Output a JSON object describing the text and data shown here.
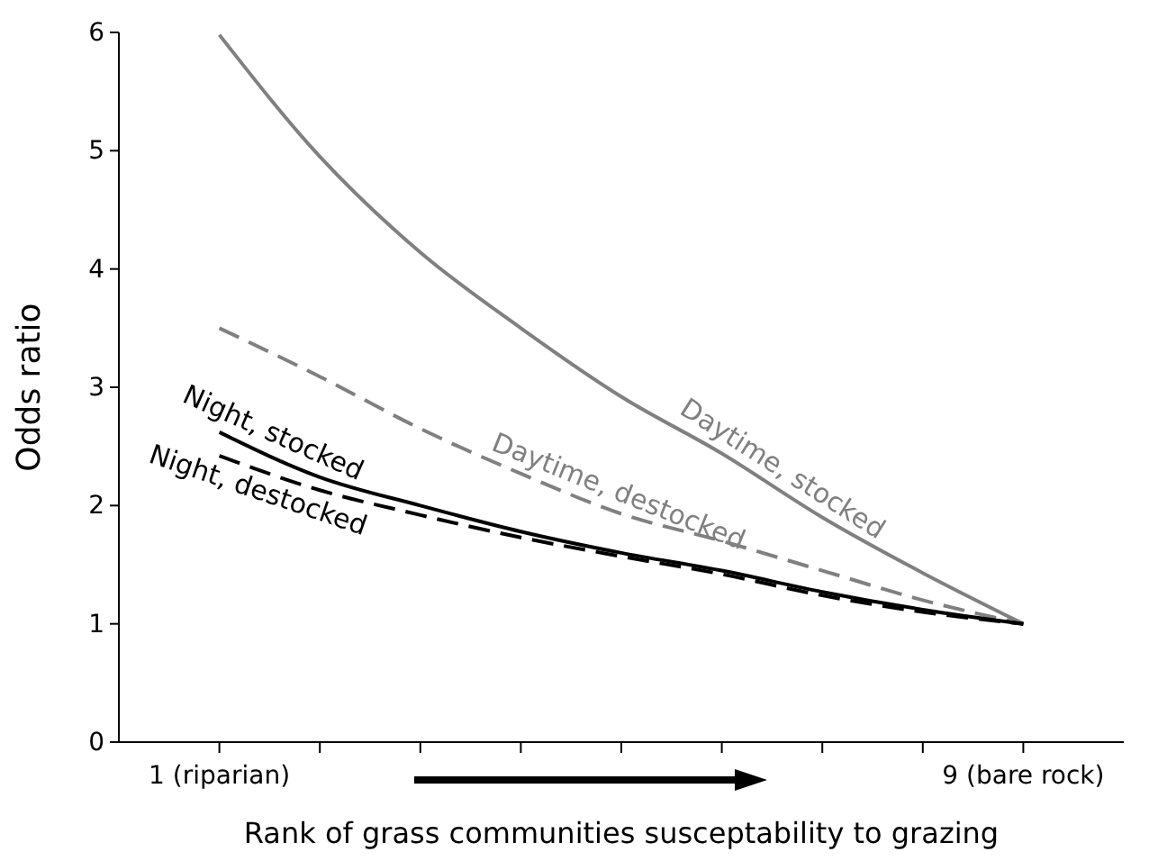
{
  "chart_data": {
    "type": "line",
    "xlabel": "Rank of grass communities susceptability to grazing",
    "ylabel": "Odds ratio",
    "x": [
      1,
      2,
      3,
      4,
      5,
      6,
      7,
      8,
      9
    ],
    "xlim": [
      0,
      10
    ],
    "xticks": [
      {
        "value": 1,
        "label": "1 (riparian)"
      },
      {
        "value": 2,
        "label": null
      },
      {
        "value": 3,
        "label": null
      },
      {
        "value": 4,
        "label": null
      },
      {
        "value": 5,
        "label": null
      },
      {
        "value": 6,
        "label": null
      },
      {
        "value": 7,
        "label": null
      },
      {
        "value": 8,
        "label": null
      },
      {
        "value": 9,
        "label": "9 (bare rock)"
      }
    ],
    "ylim": [
      0,
      6
    ],
    "yticks": [
      0,
      1,
      2,
      3,
      4,
      5,
      6
    ],
    "grid": false,
    "marker": "none",
    "series": [
      {
        "name": "Daytime, stocked",
        "color": "#808080",
        "line_style": "solid",
        "values": [
          5.98,
          4.95,
          4.14,
          3.5,
          2.92,
          2.44,
          1.9,
          1.43,
          1.0
        ]
      },
      {
        "name": "Daytime, destocked",
        "color": "#808080",
        "line_style": "dashed",
        "values": [
          3.5,
          3.09,
          2.65,
          2.27,
          1.93,
          1.7,
          1.45,
          1.2,
          1.0
        ]
      },
      {
        "name": "Night, stocked",
        "color": "#000000",
        "line_style": "solid",
        "values": [
          2.62,
          2.24,
          2.0,
          1.78,
          1.6,
          1.45,
          1.27,
          1.12,
          1.0
        ]
      },
      {
        "name": "Night, destocked",
        "color": "#000000",
        "line_style": "dashed",
        "values": [
          2.42,
          2.13,
          1.92,
          1.73,
          1.57,
          1.42,
          1.24,
          1.1,
          1.0
        ]
      }
    ]
  }
}
